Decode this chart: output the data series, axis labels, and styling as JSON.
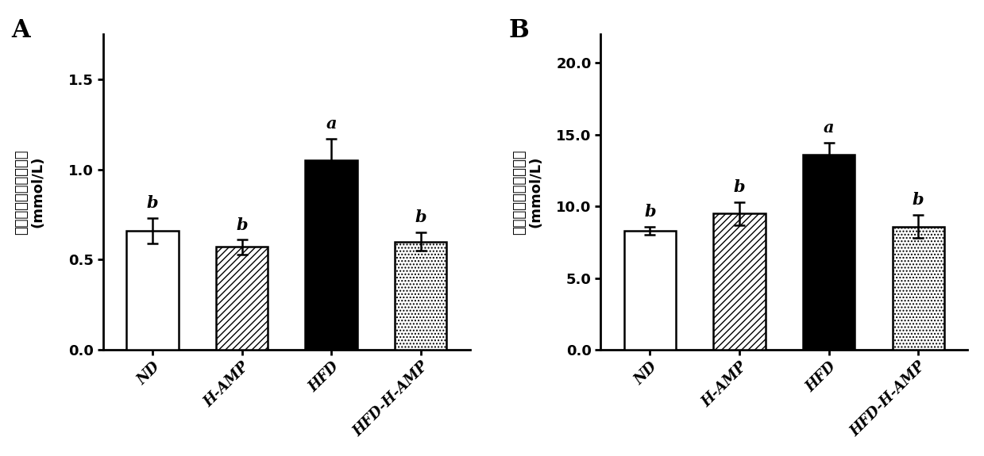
{
  "panel_A": {
    "title": "A",
    "categories": [
      "ND",
      "H-AMP",
      "HFD",
      "HFD-H-AMP"
    ],
    "values": [
      0.66,
      0.57,
      1.05,
      0.6
    ],
    "errors": [
      0.07,
      0.04,
      0.12,
      0.05
    ],
    "labels": [
      "b",
      "b",
      "a",
      "b"
    ],
    "ylabel_chinese": "小鼠血清甘油三酯含量",
    "ylabel_unit": "(mmol/L)",
    "ylim": [
      0,
      1.75
    ],
    "yticks": [
      0.0,
      0.5,
      1.0,
      1.5
    ],
    "ytick_labels": [
      "0.0",
      "0.5",
      "1.0",
      "1.5"
    ]
  },
  "panel_B": {
    "title": "B",
    "categories": [
      "ND",
      "H-AMP",
      "HFD",
      "HFD-H-AMP"
    ],
    "values": [
      8.3,
      9.5,
      13.6,
      8.6
    ],
    "errors": [
      0.3,
      0.8,
      0.85,
      0.8
    ],
    "labels": [
      "b",
      "b",
      "a",
      "b"
    ],
    "ylabel_chinese": "小鼠血清总胆固醇含量",
    "ylabel_unit": "(mmol/L)",
    "ylim": [
      0,
      22
    ],
    "yticks": [
      0.0,
      5.0,
      10.0,
      15.0,
      20.0
    ],
    "ytick_labels": [
      "0.0",
      "5.0",
      "10.0",
      "15.0",
      "20.0"
    ]
  },
  "bar_styles": [
    {
      "facecolor": "white",
      "edgecolor": "black",
      "hatch": ""
    },
    {
      "facecolor": "white",
      "edgecolor": "black",
      "hatch": "////"
    },
    {
      "facecolor": "black",
      "edgecolor": "black",
      "hatch": ""
    },
    {
      "facecolor": "white",
      "edgecolor": "black",
      "hatch": "...."
    }
  ],
  "bar_width": 0.58,
  "figsize": [
    12.39,
    5.75
  ],
  "dpi": 100,
  "bg_color": "white",
  "tick_fontsize": 13,
  "sig_fontsize": 15,
  "panel_label_fontsize": 22,
  "chinese_fontsize": 13,
  "unit_fontsize": 13
}
